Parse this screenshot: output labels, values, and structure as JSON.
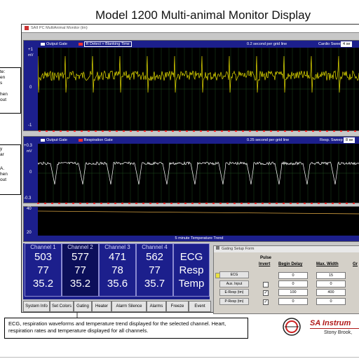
{
  "slide_title": "Model 1200 Multi-animal Monitor Display",
  "callouts": {
    "top": [
      "te:",
      "en",
      "s",
      "",
      "hen",
      "out"
    ],
    "middle": [
      "y",
      "ar",
      "",
      "A.",
      "hen",
      "out"
    ]
  },
  "window": {
    "title": "SAII PC MultiAnimal Monitor (tm)"
  },
  "ecg_panel": {
    "legend_1": "Output Gate",
    "legend_2": "R Detect + Blanking Time",
    "legend_1_color": "#ffffff",
    "legend_2_color": "#ff3030",
    "gridline": "0.2 second per grid line",
    "sweep_label": "Cardio Sweep",
    "sweep_value": "4 se",
    "scale_top": "+1",
    "scale_unit": "mV",
    "scale_mid": "0",
    "scale_bottom": "-1",
    "trace_color": "#e8e000"
  },
  "resp_panel": {
    "legend_1": "Output Gate",
    "legend_2": "Respiration Gate",
    "gridline": "0.25 second per grid line",
    "sweep_label": "Resp. Sweep",
    "sweep_value": "8 se",
    "scale_top": "+0.3",
    "scale_unit": "mV",
    "scale_mid": "0",
    "scale_bottom": "-0.3",
    "trace_color": "#ffffff"
  },
  "temp_panel": {
    "scale_top": "40",
    "scale_bottom": "20",
    "caption": "5 minute Temperature Trend",
    "trace_color": "#d4a040"
  },
  "channels": [
    {
      "label": "Channel 1",
      "ecg": "503",
      "resp": "77",
      "temp": "35.2",
      "selected": false
    },
    {
      "label": "Channel 2",
      "ecg": "577",
      "resp": "77",
      "temp": "35.2",
      "selected": true
    },
    {
      "label": "Channel 3",
      "ecg": "471",
      "resp": "78",
      "temp": "35.6",
      "selected": false
    },
    {
      "label": "Channel 4",
      "ecg": "562",
      "resp": "77",
      "temp": "35.7",
      "selected": false
    }
  ],
  "units": {
    "ecg": "ECG",
    "resp": "Resp",
    "temp": "Temp"
  },
  "buttons": [
    "System Info",
    "Set Colors",
    "Gating",
    "Heater",
    "Alarm Silence",
    "Alarms",
    "Freeze",
    "Event"
  ],
  "gating_form": {
    "title": "Gating Setup Form",
    "col_pulse": "Pulse",
    "col_invert": "Invert",
    "col_begin_delay": "Begin Delay",
    "col_max_width": "Max. Width",
    "col_gr": "Gr",
    "rows": [
      {
        "label": "ECG",
        "checked": null,
        "begin": "0",
        "width": "15"
      },
      {
        "label": "Aux. Input",
        "checked": false,
        "begin": "0",
        "width": "0"
      },
      {
        "label": "E-Resp (tm)",
        "checked": true,
        "begin": "100",
        "width": "400"
      },
      {
        "label": "P-Resp (tm)",
        "checked": true,
        "begin": "0",
        "width": "0"
      }
    ]
  },
  "caption": "ECG, respiration waveforms and temperature trend displayed for the selected channel.  Heart, respiration rates and temperature displayed for all channels.",
  "brand": {
    "name": "SA Instrum",
    "location": "Stony Brook,"
  }
}
